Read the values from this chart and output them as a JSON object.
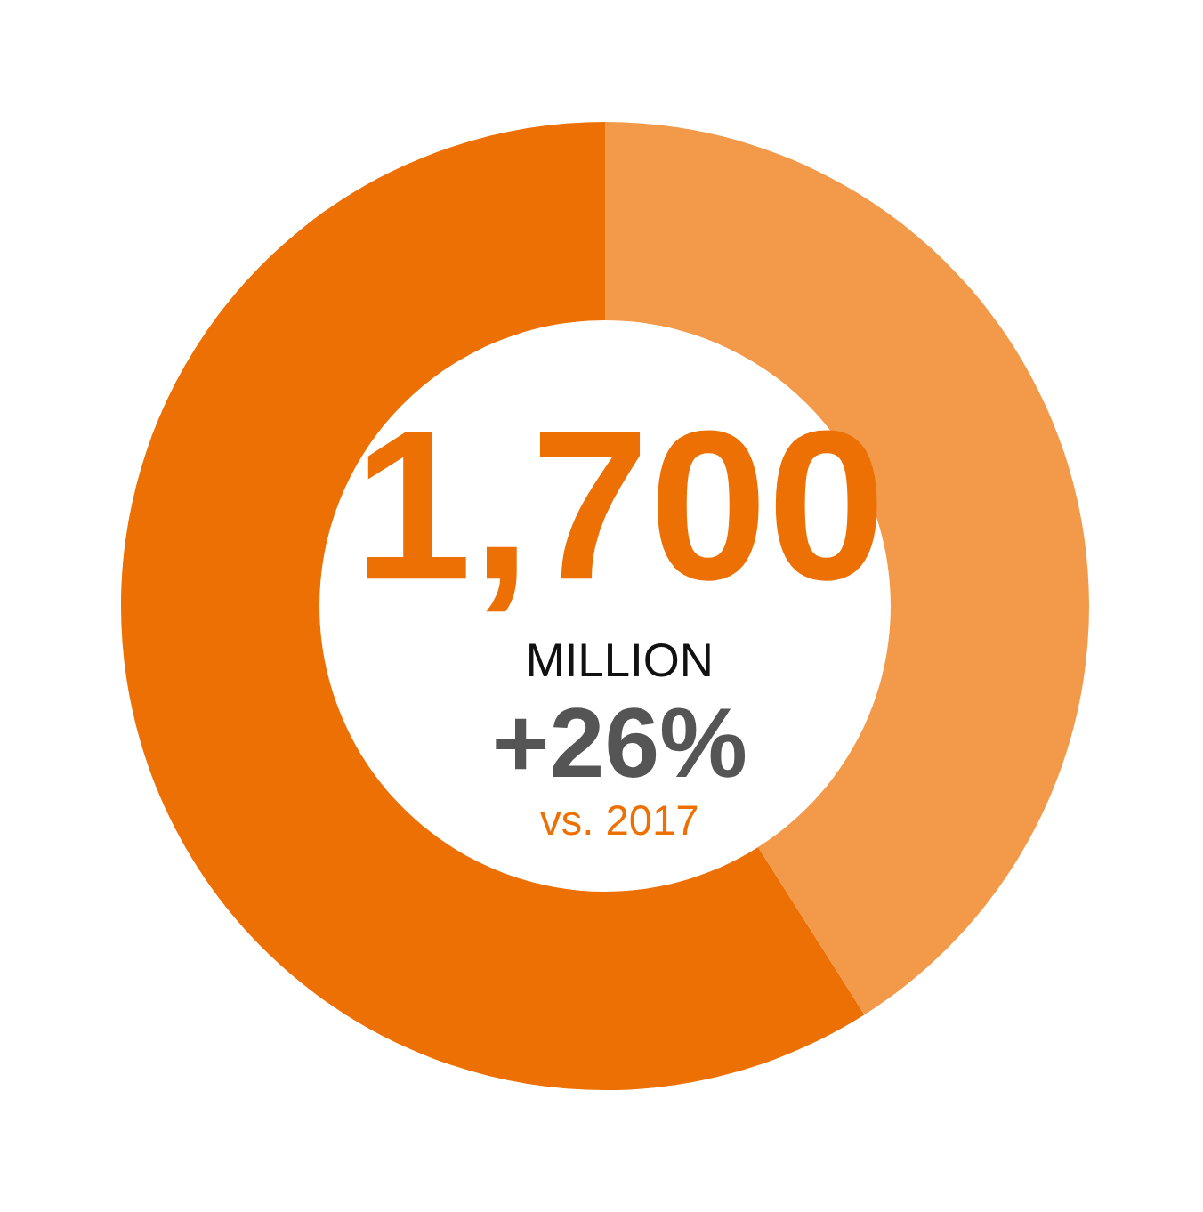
{
  "chart_data": {
    "type": "donut",
    "categories": [
      null,
      null
    ],
    "values": [
      41,
      59
    ],
    "colors": [
      "#f2994a",
      "#ed7004"
    ],
    "annotations": [
      "1,700",
      "MILLION",
      "+26%",
      "vs. 2017"
    ]
  }
}
